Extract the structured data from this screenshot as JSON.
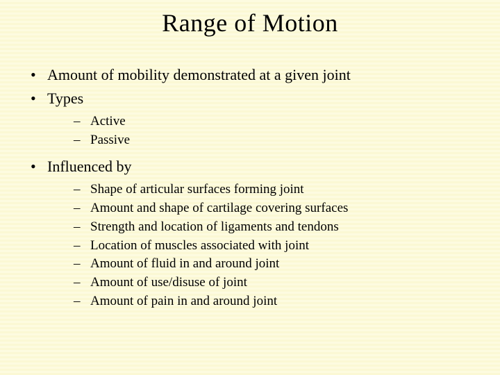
{
  "title": "Range of Motion",
  "bullets": {
    "b1": "Amount of  mobility demonstrated at a given joint",
    "b2": "Types",
    "b2_sub": {
      "s1": "Active",
      "s2": "Passive"
    },
    "b3": "Influenced by",
    "b3_sub": {
      "s1": "Shape of articular surfaces forming joint",
      "s2": "Amount and shape of cartilage covering surfaces",
      "s3": "Strength and location of ligaments and tendons",
      "s4": "Location of muscles associated with joint",
      "s5": "Amount of fluid in and around joint",
      "s6": "Amount of use/disuse of joint",
      "s7": "Amount of pain in and around joint"
    }
  },
  "styling": {
    "background_stripe_a": "#fdfbe0",
    "background_stripe_b": "#fbf8d4",
    "text_color": "#000000",
    "title_fontsize": 36,
    "level1_fontsize": 22,
    "level2_fontsize": 19,
    "font_family": "Times New Roman",
    "slide_width": 720,
    "slide_height": 540,
    "bullet_char_l1": "•",
    "bullet_char_l2": "–"
  }
}
